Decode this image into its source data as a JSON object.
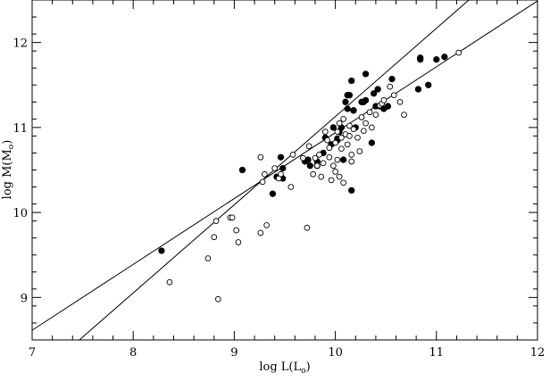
{
  "chart_data": {
    "type": "scatter",
    "title": "",
    "xlabel": {
      "prefix": "log L(L",
      "sub": "o",
      "suffix": ")"
    },
    "ylabel": {
      "prefix": "log M(M",
      "sub": "o",
      "suffix": ")"
    },
    "xlim": [
      7,
      12
    ],
    "ylim": [
      8.5,
      12.5
    ],
    "xticks": [
      7,
      8,
      9,
      10,
      11,
      12
    ],
    "yticks": [
      9,
      10,
      11,
      12
    ],
    "grid": false,
    "series": [
      {
        "marker": "filled-circle",
        "x": [
          8.28,
          9.08,
          9.38,
          9.42,
          9.46,
          9.48,
          9.48,
          9.7,
          9.73,
          9.75,
          9.82,
          9.82,
          9.88,
          9.9,
          9.96,
          9.98,
          10.02,
          10.02,
          10.04,
          10.06,
          10.08,
          10.1,
          10.12,
          10.12,
          10.14,
          10.16,
          10.16,
          10.18,
          10.18,
          10.2,
          10.26,
          10.28,
          10.3,
          10.3,
          10.36,
          10.38,
          10.4,
          10.42,
          10.44,
          10.48,
          10.52,
          10.56,
          10.82,
          10.84,
          10.84,
          10.92,
          11.0,
          11.08
        ],
        "y": [
          9.55,
          10.5,
          10.22,
          10.42,
          10.65,
          10.4,
          10.52,
          10.6,
          10.62,
          10.55,
          10.55,
          10.6,
          10.7,
          10.88,
          10.8,
          11.0,
          10.87,
          10.85,
          10.95,
          11.0,
          10.62,
          11.3,
          11.22,
          11.38,
          11.38,
          10.26,
          11.55,
          11.2,
          11.2,
          11.0,
          11.3,
          11.3,
          11.32,
          11.63,
          10.82,
          11.4,
          11.25,
          11.45,
          11.25,
          11.22,
          11.25,
          11.57,
          11.45,
          11.8,
          11.82,
          11.5,
          11.8,
          11.83
        ]
      },
      {
        "marker": "open-circle",
        "x": [
          8.36,
          8.74,
          8.8,
          8.82,
          8.84,
          8.96,
          8.98,
          9.02,
          9.04,
          9.26,
          9.28,
          9.3,
          9.32,
          9.4,
          9.46,
          9.56,
          9.58,
          9.68,
          9.72,
          9.74,
          9.78,
          9.8,
          9.82,
          9.84,
          9.86,
          9.88,
          9.9,
          9.92,
          9.94,
          9.94,
          9.96,
          9.98,
          10.0,
          10.0,
          10.02,
          10.02,
          10.04,
          10.04,
          10.06,
          10.06,
          10.08,
          10.08,
          10.1,
          10.12,
          10.14,
          10.14,
          10.16,
          10.16,
          10.18,
          10.22,
          10.24,
          10.26,
          10.28,
          10.3,
          10.34,
          10.36,
          10.4,
          10.44,
          10.46,
          10.48,
          10.54,
          10.58,
          10.64,
          10.68,
          11.22,
          9.26,
          9.44
        ],
        "y": [
          9.18,
          9.46,
          9.71,
          9.9,
          8.98,
          9.94,
          9.94,
          9.79,
          9.65,
          9.76,
          10.36,
          10.45,
          9.85,
          10.52,
          10.45,
          10.3,
          10.68,
          10.64,
          9.82,
          10.78,
          10.45,
          10.64,
          10.55,
          10.68,
          10.42,
          10.58,
          10.95,
          10.85,
          10.76,
          10.65,
          10.38,
          10.55,
          10.48,
          10.82,
          10.95,
          10.62,
          11.05,
          10.42,
          10.75,
          10.88,
          11.1,
          10.35,
          10.92,
          10.8,
          10.9,
          11.02,
          10.68,
          10.6,
          10.98,
          10.88,
          10.72,
          11.12,
          10.96,
          11.05,
          11.18,
          11.0,
          11.15,
          11.26,
          11.28,
          11.32,
          11.48,
          11.38,
          11.3,
          11.15,
          11.88,
          10.65,
          10.4
        ]
      }
    ],
    "fit_lines": [
      {
        "slope": 1.038,
        "intercept": 0.749
      },
      {
        "slope": 0.775,
        "intercept": 3.189
      }
    ]
  }
}
